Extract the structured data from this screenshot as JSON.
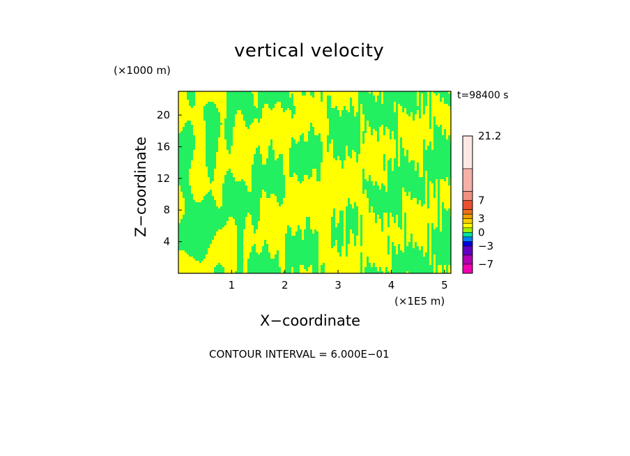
{
  "chart_data": {
    "type": "heatmap",
    "title": "vertical velocity",
    "xlabel": "X−coordinate",
    "ylabel": "Z−coordinate",
    "x_unit_label": "(×1E5 m)",
    "y_unit_label": "(×1000 m)",
    "time_label": "t=98400 s",
    "contour_interval_label": "CONTOUR INTERVAL = 6.000E−01",
    "xlim": [
      0,
      5.12
    ],
    "ylim": [
      0,
      23
    ],
    "x_ticks": [
      1,
      2,
      3,
      4,
      5
    ],
    "y_ticks": [
      4,
      8,
      12,
      16,
      20
    ],
    "field_colors": {
      "negative": "#22f060",
      "positive": "#ffff00"
    },
    "colorbar": {
      "range": [
        -9,
        21.2
      ],
      "labels": [
        "21.2",
        "7",
        "3",
        "0",
        "−3",
        "−7"
      ],
      "label_values": [
        21.2,
        7,
        3,
        0,
        -3,
        -7
      ],
      "segments": [
        {
          "from": 14,
          "to": 21.2,
          "color": "#ffe8e4"
        },
        {
          "from": 9,
          "to": 14,
          "color": "#f5b0a8"
        },
        {
          "from": 7,
          "to": 9,
          "color": "#f09080"
        },
        {
          "from": 5,
          "to": 7,
          "color": "#e85030"
        },
        {
          "from": 4,
          "to": 5,
          "color": "#e87020"
        },
        {
          "from": 3,
          "to": 4,
          "color": "#f0a000"
        },
        {
          "from": 2,
          "to": 3,
          "color": "#f8d000"
        },
        {
          "from": 1,
          "to": 2,
          "color": "#ffff00"
        },
        {
          "from": 0,
          "to": 1,
          "color": "#a0f000"
        },
        {
          "from": -1,
          "to": 0,
          "color": "#00e0a0"
        },
        {
          "from": -2,
          "to": -1,
          "color": "#0080ff"
        },
        {
          "from": -3,
          "to": -2,
          "color": "#0000e0"
        },
        {
          "from": -5,
          "to": -3,
          "color": "#6000c0"
        },
        {
          "from": -7,
          "to": -5,
          "color": "#b000b0"
        },
        {
          "from": -9,
          "to": -7,
          "color": "#f000b0"
        }
      ]
    }
  }
}
